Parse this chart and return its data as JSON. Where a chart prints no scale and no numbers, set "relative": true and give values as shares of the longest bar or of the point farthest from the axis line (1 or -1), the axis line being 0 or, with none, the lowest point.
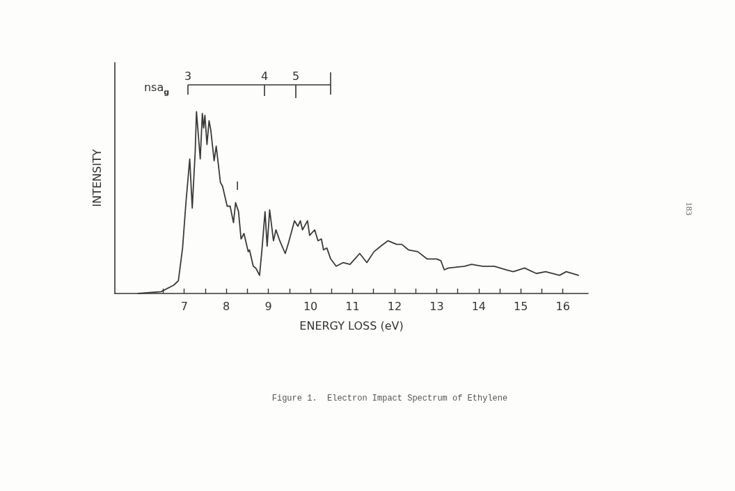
{
  "chart_data": {
    "type": "line",
    "title": "Figure 1.  Electron Impact Spectrum of Ethylene",
    "xlabel": "ENERGY LOSS (eV)",
    "ylabel": "INTENSITY",
    "relative": true,
    "grid": false,
    "marker": "none",
    "line_style": "solid",
    "xlim": [
      5.35,
      16.6
    ],
    "xticks": [
      {
        "value": 6.5,
        "label": null
      },
      7,
      {
        "value": 7.5,
        "label": null
      },
      8,
      {
        "value": 8.5,
        "label": null
      },
      9,
      {
        "value": 9.5,
        "label": null
      },
      10,
      {
        "value": 10.5,
        "label": null
      },
      11,
      {
        "value": 11.5,
        "label": null
      },
      12,
      {
        "value": 12.5,
        "label": null
      },
      13,
      {
        "value": 13.5,
        "label": null
      },
      14,
      {
        "value": 14.5,
        "label": null
      },
      15,
      {
        "value": 15.5,
        "label": null
      },
      16
    ],
    "series": [
      {
        "color": "#3a3a3a",
        "x": [
          5.9,
          6.45,
          6.75,
          6.86,
          6.96,
          7.04,
          7.13,
          7.19,
          7.26,
          7.29,
          7.38,
          7.43,
          7.46,
          7.49,
          7.54,
          7.59,
          7.63,
          7.71,
          7.76,
          7.8,
          7.86,
          7.91,
          8.02,
          8.09,
          8.17,
          8.22,
          8.29,
          8.35,
          8.42,
          8.52,
          8.55,
          8.64,
          8.7,
          8.79,
          8.85,
          8.92,
          8.97,
          9.03,
          9.12,
          9.18,
          9.27,
          9.4,
          9.48,
          9.62,
          9.7,
          9.76,
          9.81,
          9.93,
          9.98,
          10.1,
          10.18,
          10.26,
          10.31,
          10.39,
          10.48,
          10.61,
          10.78,
          10.94,
          11.17,
          11.34,
          11.51,
          11.67,
          11.84,
          12.05,
          12.17,
          12.33,
          12.55,
          12.77,
          13.0,
          13.1,
          13.18,
          13.28,
          13.66,
          13.83,
          14.09,
          14.37,
          14.66,
          14.82,
          15.09,
          15.37,
          15.59,
          15.92,
          16.08,
          16.37
        ],
        "values": [
          0,
          0.01,
          0.046,
          0.07,
          0.25,
          0.5,
          0.74,
          0.47,
          0.78,
          1.0,
          0.74,
          0.99,
          0.91,
          0.98,
          0.82,
          0.95,
          0.9,
          0.73,
          0.81,
          0.73,
          0.61,
          0.59,
          0.48,
          0.48,
          0.39,
          0.5,
          0.45,
          0.3,
          0.33,
          0.23,
          0.24,
          0.15,
          0.14,
          0.1,
          0.25,
          0.45,
          0.26,
          0.46,
          0.29,
          0.35,
          0.29,
          0.22,
          0.28,
          0.4,
          0.37,
          0.4,
          0.35,
          0.4,
          0.32,
          0.35,
          0.29,
          0.3,
          0.24,
          0.25,
          0.19,
          0.15,
          0.17,
          0.16,
          0.22,
          0.17,
          0.23,
          0.26,
          0.29,
          0.27,
          0.27,
          0.24,
          0.23,
          0.19,
          0.19,
          0.18,
          0.13,
          0.14,
          0.15,
          0.16,
          0.15,
          0.15,
          0.13,
          0.12,
          0.14,
          0.11,
          0.12,
          0.1,
          0.12,
          0.1
        ]
      }
    ],
    "annotations": [
      "nsa$_{g}$",
      "3",
      "4",
      "5",
      "I",
      "183"
    ]
  }
}
